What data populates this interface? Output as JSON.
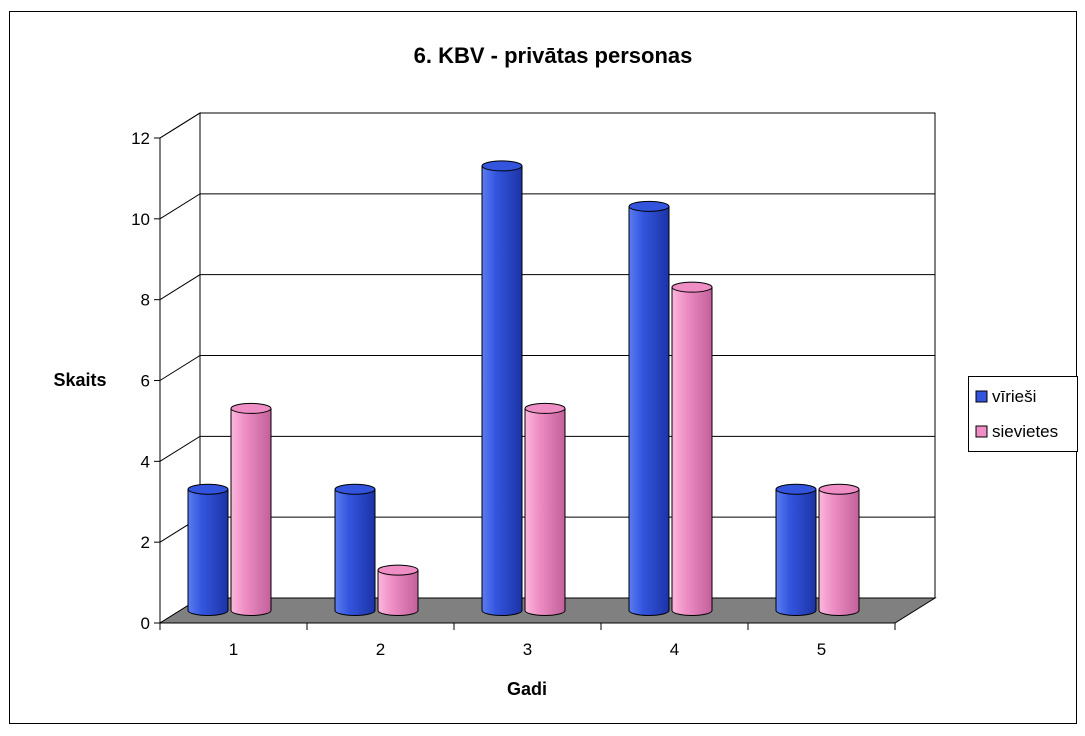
{
  "chart_data": {
    "type": "bar",
    "title": "6. KBV - privātas personas",
    "xlabel": "Gadi",
    "ylabel": "Skaits",
    "categories": [
      "1",
      "2",
      "3",
      "4",
      "5"
    ],
    "series": [
      {
        "name": "vīrieši",
        "values": [
          3,
          3,
          11,
          10,
          3
        ],
        "color": "#3355dd"
      },
      {
        "name": "sievietes",
        "values": [
          5,
          1,
          5,
          8,
          3
        ],
        "color": "#ee8ec4"
      }
    ],
    "ylim": [
      0,
      12
    ],
    "yticks": [
      "0",
      "2",
      "4",
      "6",
      "8",
      "10",
      "12"
    ],
    "grid": true,
    "legend_position": "right",
    "floor_color": "#808080",
    "three_d": true
  }
}
